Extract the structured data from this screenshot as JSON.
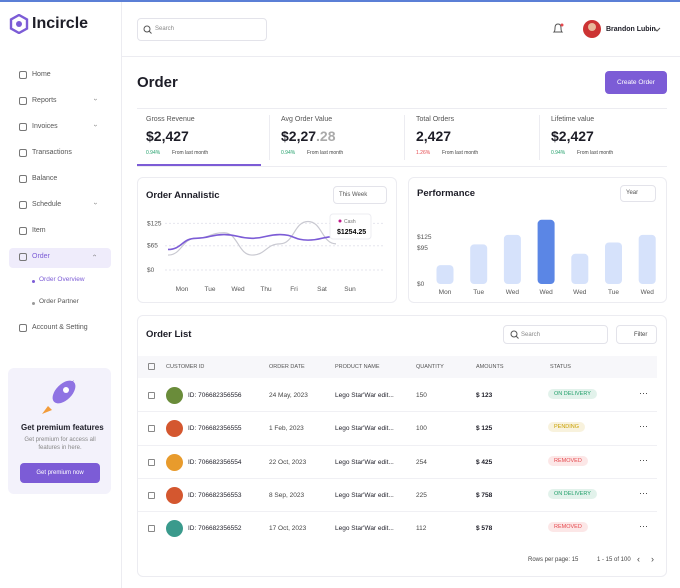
{
  "brand": "Incircle",
  "search_placeholder": "Search",
  "user": "Brandon Lubin",
  "nav": [
    "Home",
    "Reports",
    "Invoices",
    "Transactions",
    "Balance",
    "Schedule",
    "Item",
    "Order",
    "Order Overview",
    "Order Partner",
    "Account & Setting"
  ],
  "promo": {
    "title": "Get premium features",
    "text": "Get premium for access all features in here.",
    "button": "Get premium now"
  },
  "page_title": "Order",
  "create_button": "Create Order",
  "stats": [
    {
      "label": "Gross Revenue",
      "value": "$2,427",
      "decimal": "",
      "change": "0.94%",
      "change_color": "#22a06b",
      "note": "From last month"
    },
    {
      "label": "Avg Order Value",
      "value": "$2,27",
      "decimal": ".28",
      "change": "0.94%",
      "change_color": "#22a06b",
      "note": "From last month"
    },
    {
      "label": "Total Orders",
      "value": "2,427",
      "decimal": "",
      "change": "1.26%",
      "change_color": "#e5484d",
      "note": "From last month"
    },
    {
      "label": "Lifetime value",
      "value": "$2,427",
      "decimal": "",
      "change": "0.94%",
      "change_color": "#22a06b",
      "note": "From last month"
    }
  ],
  "order_chart": {
    "type": "line",
    "title": "Order Annalistic",
    "filter": "This Week",
    "tooltip": {
      "label": "Cash",
      "value": "$1254.25"
    },
    "categories": [
      "Mon",
      "Tue",
      "Wed",
      "Thu",
      "Fri",
      "Sat",
      "Sun"
    ],
    "series": [
      {
        "name": "Cash",
        "color": "#7c5cd6",
        "values": [
          55,
          85,
          95,
          85,
          95,
          80,
          90
        ]
      },
      {
        "color": "#c9c9d1",
        "values": [
          40,
          85,
          100,
          40,
          70,
          130,
          70
        ]
      }
    ],
    "ylim": [
      0,
      150
    ],
    "yticks": [
      {
        "value": 0,
        "label": "$0"
      },
      {
        "value": 65,
        "label": "$65"
      },
      {
        "value": 125,
        "label": "$125"
      }
    ]
  },
  "performance_chart": {
    "type": "bar",
    "title": "Performance",
    "filter": "Year",
    "categories": [
      "Mon",
      "Tue",
      "Wed",
      "Wed",
      "Wed",
      "Tue",
      "Wed"
    ],
    "values": [
      50,
      105,
      130,
      170,
      80,
      110,
      130
    ],
    "color": "#d6e2fb",
    "highlight_color": "#5b86e5",
    "highlight_index": 3,
    "ylim": [
      0,
      180
    ],
    "yticks": [
      {
        "value": 0,
        "label": "$0"
      },
      {
        "value": 95,
        "label": "$95"
      },
      {
        "value": 125,
        "label": "$125"
      }
    ]
  },
  "order_list": {
    "title": "Order List",
    "search_placeholder": "Search",
    "filter": "Filter",
    "columns": [
      "CUSTOMER ID",
      "ORDER DATE",
      "PRODUCT NAME",
      "QUANTITY",
      "AMOUNTS",
      "STATUS"
    ],
    "rows": [
      {
        "id": "ID: 706682356556",
        "date": "24 May, 2023",
        "product": "Lego Star'War edit...",
        "quantity": 150,
        "amount": "$ 123",
        "status": "ON DELIVERY",
        "status_color": "#22a06b"
      },
      {
        "id": "ID: 706682356555",
        "date": "1 Feb, 2023",
        "product": "Lego Star'War edit...",
        "quantity": 100,
        "amount": "$ 125",
        "status": "PENDING",
        "status_color": "#c9a000"
      },
      {
        "id": "ID: 706682356554",
        "date": "22 Oct, 2023",
        "product": "Lego Star'War edit...",
        "quantity": 254,
        "amount": "$ 425",
        "status": "REMOVED",
        "status_color": "#e5484d"
      },
      {
        "id": "ID: 706682356553",
        "date": "8 Sep, 2023",
        "product": "Lego Star'War edit...",
        "quantity": 225,
        "amount": "$ 758",
        "status": "ON DELIVERY",
        "status_color": "#22a06b"
      },
      {
        "id": "ID: 706682356552",
        "date": "17 Oct, 2023",
        "product": "Lego Star'War edit...",
        "quantity": 112,
        "amount": "$ 578",
        "status": "REMOVED",
        "status_color": "#e5484d"
      }
    ],
    "rows_per_page": "Rows per page: 15",
    "range": "1 - 15 of 100"
  }
}
